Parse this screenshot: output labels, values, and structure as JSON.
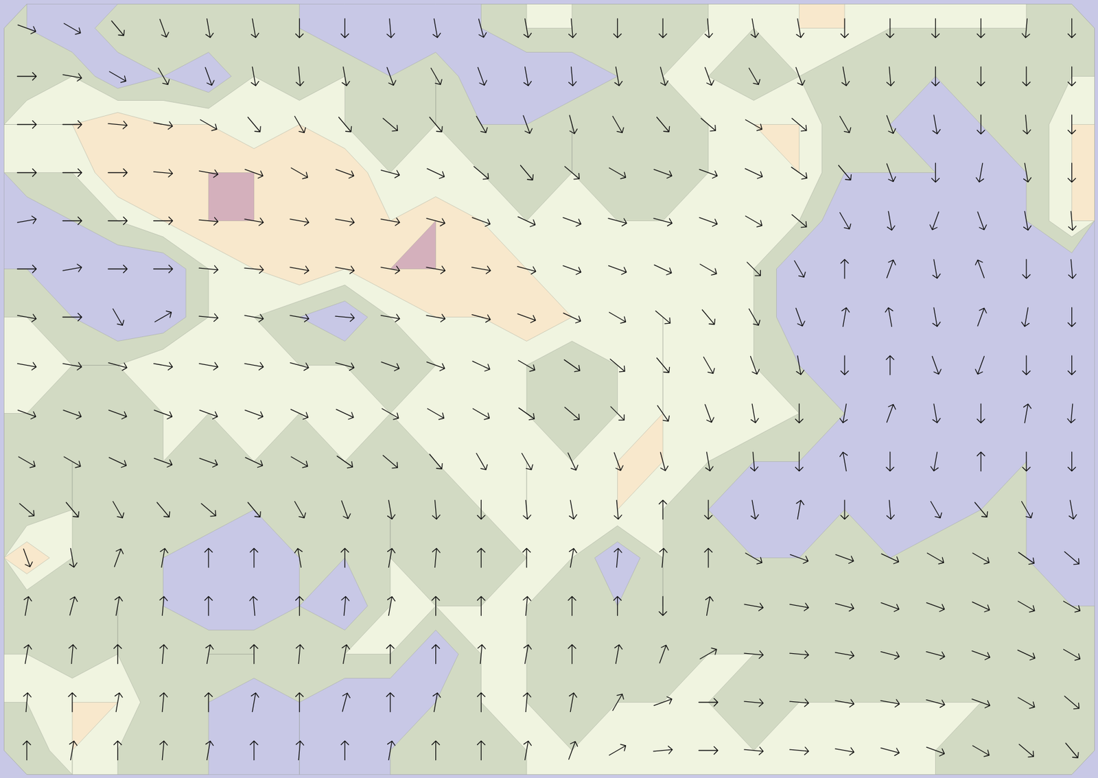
{
  "chart_data": {
    "type": "vector_field",
    "tick_labels": false,
    "levels": [
      1,
      2,
      3,
      4,
      5,
      6
    ],
    "colors": [
      "#c8c8e6",
      "#d2dac3",
      "#f0f4e0",
      "#f8e8cc",
      "#d4b0bc",
      "#f8d0e0"
    ],
    "level_grid": [
      [
        2,
        1,
        3,
        2,
        3,
        2,
        2,
        1,
        1,
        1,
        2,
        3,
        3,
        2,
        2,
        3,
        3,
        4,
        4,
        3,
        3,
        3,
        3,
        2
      ],
      [
        2,
        3,
        1,
        2,
        1,
        3,
        2,
        3,
        2,
        3,
        1,
        1,
        1,
        2,
        3,
        3,
        2,
        3,
        2,
        2,
        2,
        2,
        2,
        3
      ],
      [
        4,
        4,
        5,
        4,
        4,
        3,
        4,
        3,
        2,
        3,
        2,
        2,
        3,
        2,
        2,
        3,
        4,
        4,
        2,
        2,
        1,
        2,
        2,
        4
      ],
      [
        3,
        3,
        5,
        4,
        5,
        5,
        4,
        5,
        3,
        3,
        3,
        2,
        3,
        2,
        2,
        3,
        3,
        4,
        2,
        2,
        2,
        1,
        2,
        4
      ],
      [
        1,
        2,
        3,
        4,
        5,
        5,
        4,
        4,
        4,
        5,
        4,
        3,
        3,
        3,
        3,
        3,
        4,
        3,
        1,
        1,
        1,
        1,
        2,
        4
      ],
      [
        2,
        1,
        1,
        1,
        3,
        4,
        5,
        4,
        5,
        5,
        4,
        4,
        3,
        4,
        3,
        4,
        3,
        1,
        1,
        1,
        1,
        2,
        1,
        1
      ],
      [
        3,
        2,
        1,
        1,
        3,
        3,
        2,
        1,
        3,
        4,
        4,
        5,
        4,
        3,
        4,
        3,
        3,
        1,
        1,
        1,
        2,
        1,
        1,
        1
      ],
      [
        4,
        3,
        3,
        4,
        3,
        3,
        3,
        3,
        2,
        3,
        3,
        3,
        2,
        3,
        4,
        3,
        3,
        2,
        1,
        1,
        1,
        2,
        1,
        1
      ],
      [
        3,
        2,
        2,
        3,
        3,
        3,
        3,
        4,
        3,
        3,
        4,
        3,
        2,
        3,
        4,
        3,
        4,
        3,
        2,
        1,
        1,
        1,
        1,
        1
      ],
      [
        2,
        3,
        2,
        3,
        2,
        3,
        2,
        3,
        2,
        3,
        3,
        4,
        3,
        4,
        4,
        3,
        2,
        2,
        1,
        1,
        1,
        1,
        2,
        1
      ],
      [
        2,
        3,
        2,
        2,
        3,
        2,
        3,
        2,
        3,
        2,
        3,
        4,
        3,
        4,
        3,
        2,
        1,
        1,
        2,
        1,
        1,
        2,
        2,
        1
      ],
      [
        5,
        3,
        2,
        2,
        1,
        1,
        2,
        2,
        3,
        2,
        2,
        3,
        3,
        1,
        3,
        2,
        2,
        2,
        3,
        2,
        3,
        2,
        2,
        1
      ],
      [
        2,
        2,
        3,
        2,
        1,
        1,
        2,
        1,
        3,
        3,
        3,
        3,
        2,
        2,
        3,
        2,
        2,
        3,
        2,
        2,
        2,
        3,
        2,
        2
      ],
      [
        3,
        2,
        3,
        2,
        3,
        3,
        2,
        3,
        3,
        1,
        3,
        3,
        2,
        2,
        2,
        3,
        3,
        2,
        2,
        2,
        2,
        2,
        2,
        2
      ],
      [
        3,
        4,
        4,
        2,
        2,
        1,
        2,
        1,
        1,
        2,
        3,
        3,
        2,
        3,
        3,
        3,
        2,
        3,
        3,
        3,
        3,
        3,
        2,
        2
      ],
      [
        2,
        4,
        3,
        2,
        2,
        1,
        2,
        1,
        2,
        3,
        2,
        3,
        3,
        3,
        3,
        3,
        3,
        3,
        3,
        3,
        3,
        2,
        2,
        2
      ]
    ],
    "direction_grid": [
      [
        110,
        120,
        140,
        160,
        170,
        170,
        180,
        180,
        175,
        170,
        165,
        170,
        175,
        180,
        180,
        175,
        170,
        170,
        180,
        180,
        180,
        180,
        185,
        180
      ],
      [
        90,
        100,
        120,
        150,
        160,
        170,
        175,
        170,
        160,
        150,
        160,
        170,
        175,
        170,
        165,
        160,
        150,
        160,
        170,
        175,
        180,
        180,
        180,
        180
      ],
      [
        90,
        90,
        95,
        100,
        120,
        140,
        150,
        140,
        130,
        140,
        150,
        160,
        165,
        150,
        140,
        130,
        120,
        130,
        150,
        160,
        170,
        180,
        175,
        180
      ],
      [
        90,
        90,
        90,
        95,
        100,
        110,
        120,
        110,
        105,
        115,
        130,
        140,
        130,
        120,
        110,
        110,
        115,
        125,
        140,
        160,
        180,
        190,
        170,
        180
      ],
      [
        80,
        90,
        90,
        90,
        95,
        100,
        100,
        100,
        100,
        105,
        110,
        115,
        110,
        105,
        105,
        110,
        120,
        130,
        150,
        170,
        200,
        160,
        170,
        175
      ],
      [
        90,
        80,
        90,
        90,
        95,
        95,
        100,
        100,
        100,
        100,
        100,
        105,
        110,
        110,
        115,
        120,
        135,
        150,
        0,
        20,
        170,
        340,
        180,
        175
      ],
      [
        100,
        90,
        150,
        60,
        95,
        100,
        100,
        95,
        100,
        100,
        105,
        110,
        115,
        120,
        130,
        140,
        150,
        160,
        10,
        350,
        170,
        20,
        190,
        180
      ],
      [
        100,
        100,
        105,
        100,
        100,
        100,
        105,
        105,
        110,
        110,
        115,
        120,
        125,
        130,
        140,
        150,
        160,
        170,
        180,
        0,
        160,
        200,
        180,
        180
      ],
      [
        110,
        110,
        110,
        110,
        110,
        110,
        115,
        115,
        120,
        120,
        120,
        125,
        130,
        135,
        145,
        160,
        170,
        180,
        190,
        20,
        170,
        180,
        10,
        185
      ],
      [
        120,
        120,
        115,
        110,
        110,
        115,
        120,
        125,
        130,
        140,
        150,
        150,
        155,
        160,
        165,
        170,
        175,
        180,
        350,
        180,
        190,
        0,
        180,
        180
      ],
      [
        130,
        140,
        150,
        140,
        130,
        140,
        150,
        160,
        170,
        175,
        180,
        175,
        170,
        175,
        0,
        180,
        170,
        10,
        180,
        175,
        150,
        140,
        150,
        170
      ],
      [
        160,
        170,
        20,
        10,
        0,
        0,
        350,
        0,
        10,
        5,
        0,
        0,
        10,
        5,
        5,
        0,
        120,
        110,
        110,
        115,
        120,
        120,
        125,
        130
      ],
      [
        10,
        15,
        10,
        5,
        0,
        355,
        0,
        5,
        10,
        0,
        0,
        5,
        0,
        0,
        180,
        10,
        100,
        100,
        105,
        110,
        110,
        115,
        120,
        120
      ],
      [
        10,
        5,
        0,
        5,
        10,
        0,
        5,
        10,
        0,
        0,
        5,
        10,
        0,
        10,
        20,
        60,
        95,
        95,
        100,
        105,
        105,
        110,
        115,
        120
      ],
      [
        5,
        0,
        10,
        5,
        0,
        10,
        0,
        15,
        0,
        10,
        0,
        5,
        10,
        30,
        70,
        90,
        95,
        95,
        100,
        100,
        105,
        110,
        120,
        130
      ],
      [
        0,
        10,
        0,
        5,
        10,
        0,
        5,
        0,
        10,
        0,
        0,
        10,
        20,
        60,
        85,
        90,
        95,
        95,
        100,
        105,
        110,
        120,
        130,
        140
      ]
    ]
  }
}
